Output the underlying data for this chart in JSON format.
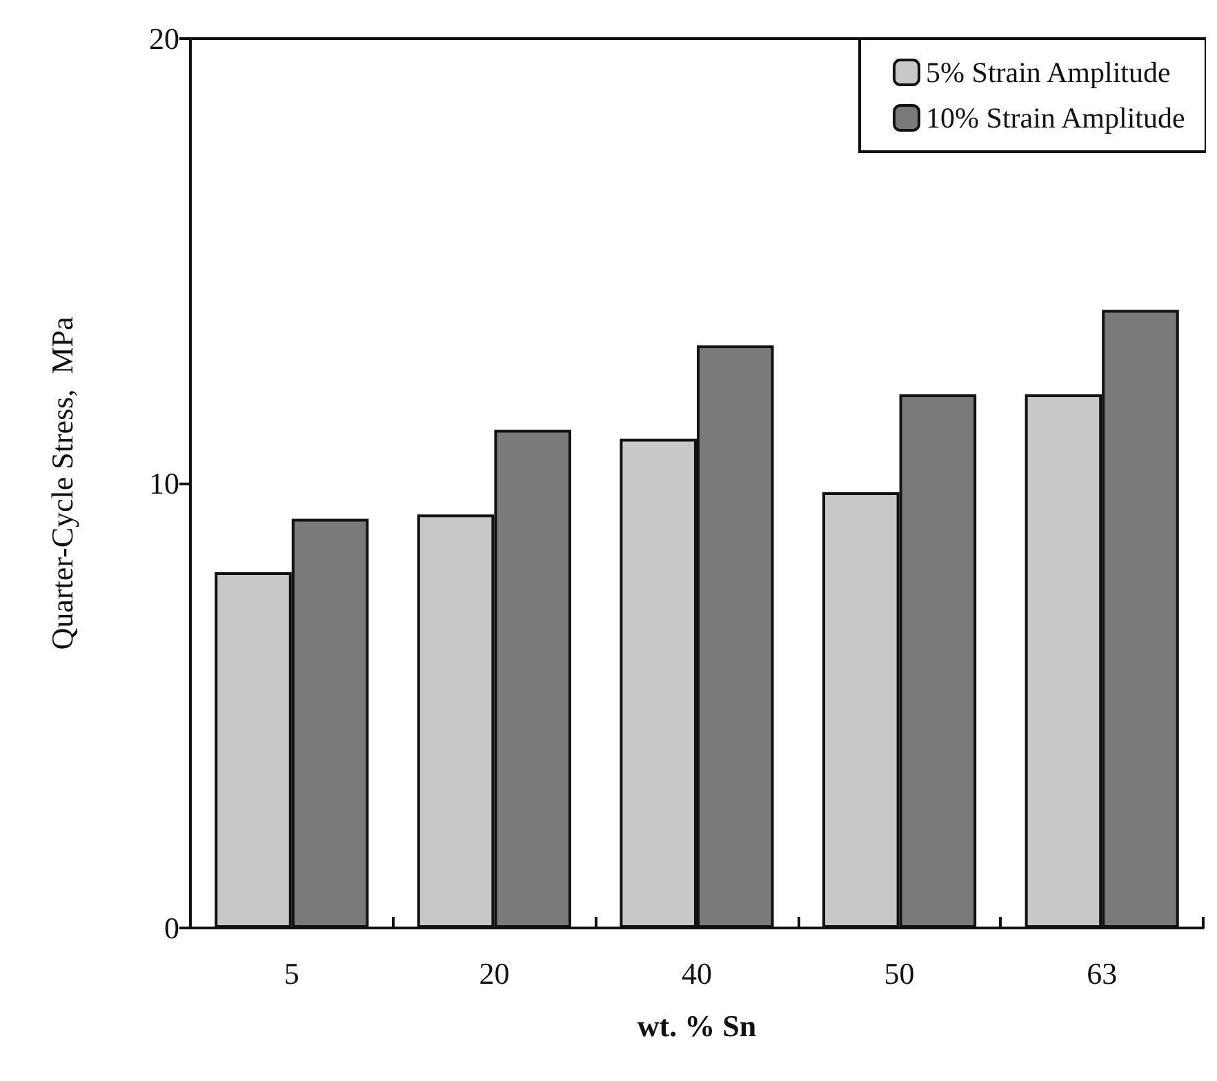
{
  "chart_data": {
    "type": "bar",
    "xlabel": "wt. % Sn",
    "ylabel": "Quarter-Cycle Stress,  MPa",
    "categories": [
      "5",
      "20",
      "40",
      "50",
      "63"
    ],
    "series": [
      {
        "name": "5% Strain Amplitude",
        "color": "#c8c8c8",
        "values": [
          8.0,
          9.3,
          11.0,
          9.8,
          12.0
        ]
      },
      {
        "name": "10% Strain Amplitude",
        "color": "#7a7a7a",
        "values": [
          9.2,
          11.2,
          13.1,
          12.0,
          13.9
        ]
      }
    ],
    "ylim": [
      0,
      20
    ],
    "yticks": [
      0,
      10,
      20
    ],
    "grid": false,
    "legend": "top right"
  }
}
